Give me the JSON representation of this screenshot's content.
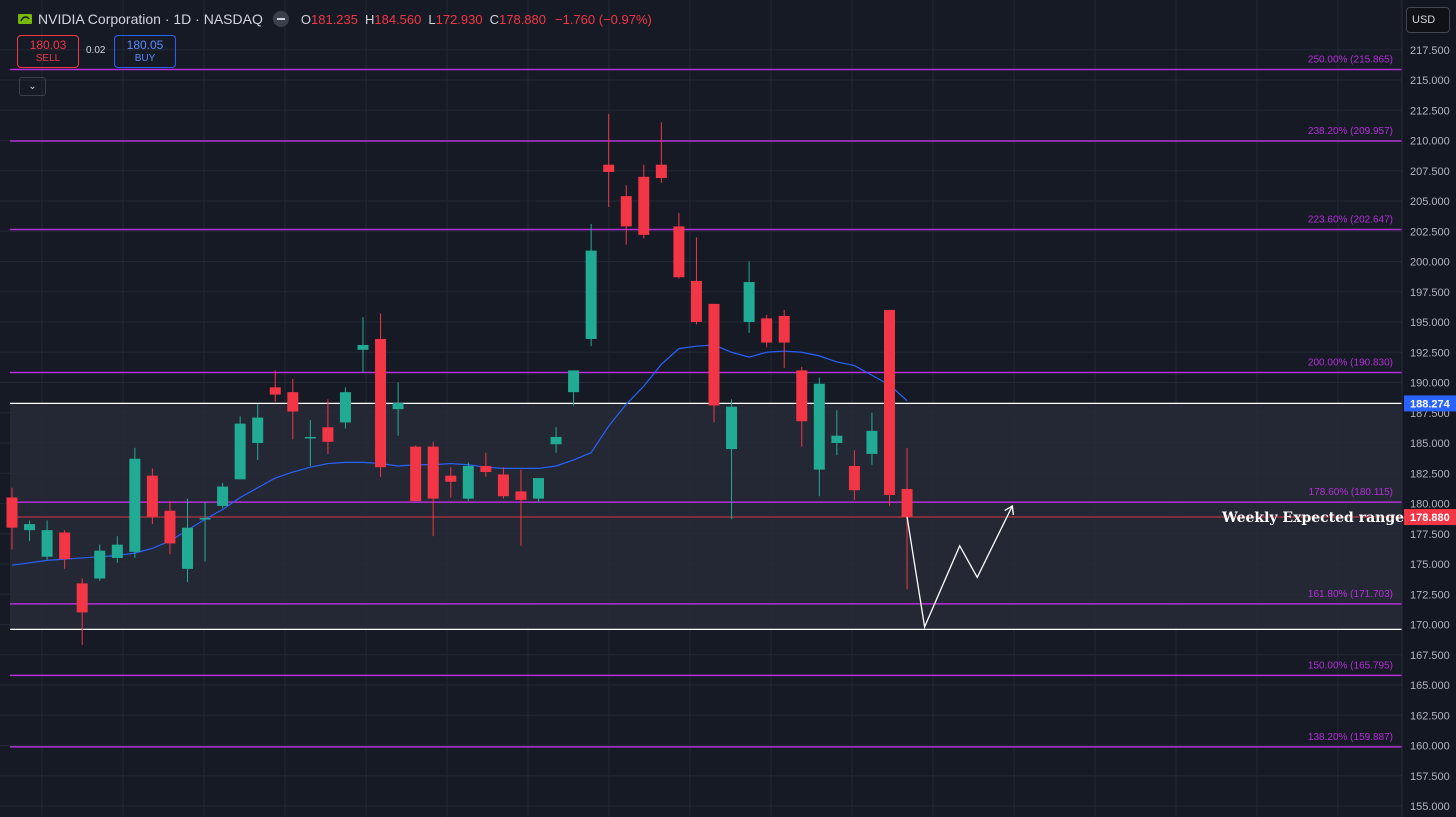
{
  "header": {
    "symbol_title": "NVIDIA Corporation · 1D · NASDAQ",
    "open_label": "O",
    "open": "181.235",
    "high_label": "H",
    "high": "184.560",
    "low_label": "L",
    "low": "172.930",
    "close_label": "C",
    "close": "178.880",
    "change": "−1.760 (−0.97%)"
  },
  "trade": {
    "sell_price": "180.03",
    "sell_label": "SELL",
    "spread": "0.02",
    "buy_price": "180.05",
    "buy_label": "BUY"
  },
  "collapse_icon": "chevron-down-icon",
  "currency": "USD",
  "annotation": "Weekly Expected range",
  "colors": {
    "background": "#161a25",
    "grid": "#232836",
    "up": "#22ab94",
    "down": "#f23645",
    "fib": "#b52fd9",
    "fib_text": "#b52fd9",
    "ma": "#2962ff",
    "range_fill": "#262a36",
    "range_border": "#ffffff",
    "price_tag_red": "#f23645",
    "price_tag_blue": "#2962ff",
    "projection": "#ffffff"
  },
  "chart_data": {
    "type": "candlestick",
    "symbol": "NVDA",
    "timeframe": "1D",
    "y_axis": {
      "range": [
        154.5,
        218.5
      ],
      "ticks": [
        "155.000",
        "157.500",
        "160.000",
        "162.500",
        "165.000",
        "167.500",
        "170.000",
        "172.500",
        "175.000",
        "177.500",
        "180.000",
        "182.500",
        "185.000",
        "187.500",
        "190.000",
        "192.500",
        "195.000",
        "197.500",
        "200.000",
        "202.500",
        "205.000",
        "207.500",
        "210.000",
        "212.500",
        "215.000",
        "217.500"
      ]
    },
    "grid": true,
    "candles": [
      {
        "o": 180.5,
        "h": 181.3,
        "l": 176.2,
        "c": 178.0
      },
      {
        "o": 177.8,
        "h": 178.6,
        "l": 176.9,
        "c": 178.3
      },
      {
        "o": 175.6,
        "h": 178.6,
        "l": 175.3,
        "c": 177.8
      },
      {
        "o": 177.6,
        "h": 177.8,
        "l": 174.6,
        "c": 175.4
      },
      {
        "o": 173.4,
        "h": 173.8,
        "l": 168.3,
        "c": 171.0
      },
      {
        "o": 173.8,
        "h": 176.6,
        "l": 173.6,
        "c": 176.1
      },
      {
        "o": 175.5,
        "h": 177.3,
        "l": 175.1,
        "c": 176.6
      },
      {
        "o": 176.0,
        "h": 184.6,
        "l": 175.5,
        "c": 183.7
      },
      {
        "o": 182.3,
        "h": 182.9,
        "l": 178.3,
        "c": 178.9
      },
      {
        "o": 179.4,
        "h": 180.2,
        "l": 175.8,
        "c": 176.7
      },
      {
        "o": 174.6,
        "h": 180.4,
        "l": 173.5,
        "c": 178.0
      },
      {
        "o": 178.7,
        "h": 180.1,
        "l": 175.2,
        "c": 178.8
      },
      {
        "o": 179.8,
        "h": 181.7,
        "l": 179.6,
        "c": 181.4
      },
      {
        "o": 182.0,
        "h": 187.2,
        "l": 182.0,
        "c": 186.6
      },
      {
        "o": 185.0,
        "h": 188.2,
        "l": 183.6,
        "c": 187.1
      },
      {
        "o": 189.6,
        "h": 191.0,
        "l": 188.4,
        "c": 189.0
      },
      {
        "o": 189.2,
        "h": 190.3,
        "l": 185.3,
        "c": 187.6
      },
      {
        "o": 185.5,
        "h": 186.9,
        "l": 183.1,
        "c": 185.5
      },
      {
        "o": 186.3,
        "h": 188.6,
        "l": 184.1,
        "c": 185.1
      },
      {
        "o": 186.7,
        "h": 189.6,
        "l": 186.2,
        "c": 189.2
      },
      {
        "o": 192.7,
        "h": 195.4,
        "l": 190.8,
        "c": 193.1
      },
      {
        "o": 193.6,
        "h": 195.7,
        "l": 182.2,
        "c": 183.0
      },
      {
        "o": 187.8,
        "h": 190.0,
        "l": 185.6,
        "c": 188.3
      },
      {
        "o": 184.7,
        "h": 184.8,
        "l": 180.2,
        "c": 180.2
      },
      {
        "o": 184.7,
        "h": 185.1,
        "l": 177.3,
        "c": 180.4
      },
      {
        "o": 182.3,
        "h": 183.0,
        "l": 180.5,
        "c": 181.8
      },
      {
        "o": 180.4,
        "h": 183.4,
        "l": 180.2,
        "c": 183.1
      },
      {
        "o": 183.1,
        "h": 184.2,
        "l": 182.2,
        "c": 182.6
      },
      {
        "o": 182.4,
        "h": 183.0,
        "l": 180.4,
        "c": 180.6
      },
      {
        "o": 181.0,
        "h": 182.8,
        "l": 176.5,
        "c": 180.3
      },
      {
        "o": 180.4,
        "h": 182.0,
        "l": 180.1,
        "c": 182.1
      },
      {
        "o": 184.9,
        "h": 186.3,
        "l": 184.2,
        "c": 185.5
      },
      {
        "o": 189.2,
        "h": 190.5,
        "l": 188.1,
        "c": 191.0
      },
      {
        "o": 193.6,
        "h": 203.1,
        "l": 193.0,
        "c": 200.9
      },
      {
        "o": 208.0,
        "h": 212.2,
        "l": 204.5,
        "c": 207.4
      },
      {
        "o": 205.4,
        "h": 206.3,
        "l": 201.4,
        "c": 202.9
      },
      {
        "o": 207.0,
        "h": 208.0,
        "l": 201.9,
        "c": 202.2
      },
      {
        "o": 208.0,
        "h": 211.5,
        "l": 206.5,
        "c": 206.9
      },
      {
        "o": 202.9,
        "h": 204.0,
        "l": 198.6,
        "c": 198.7
      },
      {
        "o": 198.4,
        "h": 202.0,
        "l": 194.8,
        "c": 195.0
      },
      {
        "o": 196.5,
        "h": 196.5,
        "l": 186.7,
        "c": 188.1
      },
      {
        "o": 184.5,
        "h": 188.6,
        "l": 178.7,
        "c": 188.0
      },
      {
        "o": 195.0,
        "h": 200.0,
        "l": 194.1,
        "c": 198.3
      },
      {
        "o": 195.3,
        "h": 195.6,
        "l": 192.9,
        "c": 193.3
      },
      {
        "o": 195.5,
        "h": 196.0,
        "l": 191.2,
        "c": 193.3
      },
      {
        "o": 191.0,
        "h": 191.3,
        "l": 184.7,
        "c": 186.8
      },
      {
        "o": 182.8,
        "h": 190.4,
        "l": 180.6,
        "c": 189.9
      },
      {
        "o": 185.0,
        "h": 187.7,
        "l": 184.0,
        "c": 185.6
      },
      {
        "o": 183.1,
        "h": 184.4,
        "l": 180.3,
        "c": 181.1
      },
      {
        "o": 184.1,
        "h": 187.5,
        "l": 183.2,
        "c": 186.0
      },
      {
        "o": 196.0,
        "h": 196.0,
        "l": 179.8,
        "c": 180.7
      },
      {
        "o": 181.2,
        "h": 184.6,
        "l": 172.9,
        "c": 178.9
      }
    ],
    "moving_average": [
      174.9,
      175.1,
      175.3,
      175.4,
      175.5,
      175.6,
      175.7,
      175.9,
      176.3,
      176.9,
      177.8,
      178.7,
      179.5,
      180.5,
      181.3,
      182.1,
      182.6,
      183.0,
      183.3,
      183.4,
      183.4,
      183.3,
      183.1,
      183.2,
      183.2,
      183.3,
      183.2,
      183.0,
      182.9,
      182.9,
      182.9,
      183.1,
      183.6,
      184.2,
      186.4,
      188.2,
      189.7,
      191.5,
      192.8,
      193.0,
      193.1,
      192.5,
      192.1,
      192.5,
      192.6,
      192.5,
      192.2,
      191.7,
      191.4,
      190.6,
      189.8,
      188.5
    ],
    "fib_levels": [
      {
        "label": "250.00% (215.865)",
        "value": 215.865
      },
      {
        "label": "238.20% (209.957)",
        "value": 209.957
      },
      {
        "label": "223.60% (202.647)",
        "value": 202.647
      },
      {
        "label": "200.00% (190.830)",
        "value": 190.83
      },
      {
        "label": "178.60% (180.115)",
        "value": 180.115
      },
      {
        "label": "161.80% (171.703)",
        "value": 171.703
      },
      {
        "label": "150.00% (165.795)",
        "value": 165.795
      },
      {
        "label": "138.20% (159.887)",
        "value": 159.887
      }
    ],
    "expected_range": {
      "high": 188.274,
      "low": 169.6
    },
    "price_tags": {
      "range_high": "188.274",
      "last": "178.880",
      "last_value": 178.88
    },
    "projection": [
      {
        "i": 51,
        "v": 178.9
      },
      {
        "i": 52,
        "v": 169.8
      },
      {
        "i": 54,
        "v": 176.5
      },
      {
        "i": 55,
        "v": 173.9
      },
      {
        "i": 57,
        "v": 179.8
      }
    ]
  }
}
